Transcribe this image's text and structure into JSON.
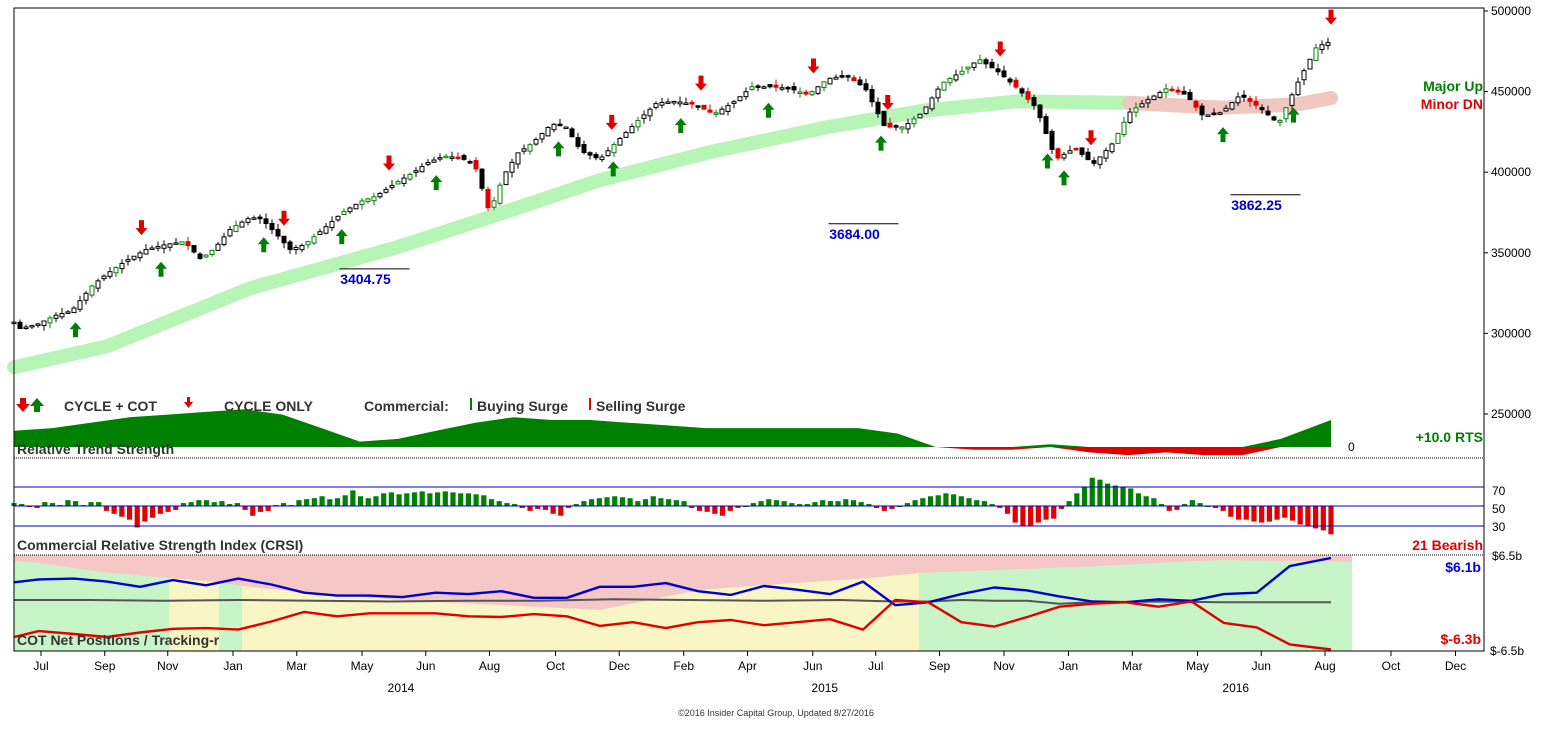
{
  "colors": {
    "bull": "#008000",
    "bear": "#e00000",
    "blue": "#0000cc",
    "trend_band": "#b6f5b6",
    "trend_band_pink": "#f6c2c2",
    "trend_band_yellow": "#f5f2b0",
    "panel_green": "#c8f5c8",
    "panel_pink": "#f6c7c7",
    "panel_yellow": "#f8f6c4"
  },
  "chart_data": {
    "type": "candlestick",
    "price_panel": {
      "y_ticks": [
        "500000",
        "450000",
        "400000",
        "350000",
        "300000",
        "250000"
      ],
      "ylim": [
        214000,
        500000
      ],
      "trend_label_1": "Major Up",
      "trend_label_2": "Minor DN",
      "annotations": [
        {
          "text": "3404.75",
          "x": 47.4,
          "y": 340000
        },
        {
          "text": "3684.00",
          "x": 112.6,
          "y": 368000
        },
        {
          "text": "3862.25",
          "x": 166.2,
          "y": 386000
        }
      ],
      "key_points": [
        [
          0.0,
          307000
        ],
        [
          0.8,
          303000
        ],
        [
          3.3,
          306000
        ],
        [
          5.4,
          311000
        ],
        [
          7.7,
          314000
        ],
        [
          10.5,
          330000
        ],
        [
          12.4,
          337000
        ],
        [
          14.9,
          345000
        ],
        [
          17.6,
          352000
        ],
        [
          20.1,
          355000
        ],
        [
          22.7,
          357000
        ],
        [
          24.9,
          346000
        ],
        [
          26.8,
          353000
        ],
        [
          28.9,
          365000
        ],
        [
          31.5,
          372000
        ],
        [
          33.0,
          371000
        ],
        [
          34.9,
          362000
        ],
        [
          36.8,
          352000
        ],
        [
          38.7,
          355000
        ],
        [
          41.3,
          365000
        ],
        [
          43.8,
          375000
        ],
        [
          46.3,
          382000
        ],
        [
          48.2,
          385000
        ],
        [
          50.8,
          393000
        ],
        [
          53.3,
          400000
        ],
        [
          55.2,
          406000
        ],
        [
          57.3,
          410000
        ],
        [
          59.5,
          409000
        ],
        [
          61.4,
          405000
        ],
        [
          63.4,
          375000
        ],
        [
          65.3,
          398000
        ],
        [
          67.2,
          412000
        ],
        [
          69.1,
          418000
        ],
        [
          71.7,
          430000
        ],
        [
          73.6,
          428000
        ],
        [
          75.6,
          413000
        ],
        [
          78.1,
          408000
        ],
        [
          80.6,
          420000
        ],
        [
          83.2,
          432000
        ],
        [
          85.7,
          443000
        ],
        [
          88.2,
          444000
        ],
        [
          90.8,
          442000
        ],
        [
          93.3,
          436000
        ],
        [
          95.8,
          443000
        ],
        [
          98.4,
          453000
        ],
        [
          100.9,
          453000
        ],
        [
          103.4,
          452000
        ],
        [
          105.9,
          448000
        ],
        [
          108.5,
          458000
        ],
        [
          111.0,
          460000
        ],
        [
          113.5,
          452000
        ],
        [
          116.1,
          428000
        ],
        [
          118.6,
          428000
        ],
        [
          121.1,
          437000
        ],
        [
          123.7,
          455000
        ],
        [
          126.2,
          462000
        ],
        [
          128.7,
          470000
        ],
        [
          131.3,
          462000
        ],
        [
          133.8,
          452000
        ],
        [
          136.3,
          440000
        ],
        [
          138.9,
          408000
        ],
        [
          141.4,
          415000
        ],
        [
          143.9,
          405000
        ],
        [
          146.5,
          418000
        ],
        [
          148.7,
          437000
        ],
        [
          151.2,
          445000
        ],
        [
          153.7,
          452000
        ],
        [
          156.3,
          448000
        ],
        [
          158.5,
          435000
        ],
        [
          161.0,
          437000
        ],
        [
          163.5,
          448000
        ],
        [
          166.1,
          440000
        ],
        [
          168.6,
          430000
        ],
        [
          171.1,
          455000
        ],
        [
          173.7,
          478000
        ],
        [
          175.6,
          481000
        ]
      ],
      "major_trend": [
        [
          0.0,
          279000
        ],
        [
          12.4,
          292000
        ],
        [
          31.5,
          328000
        ],
        [
          50.8,
          353000
        ],
        [
          63.4,
          372000
        ],
        [
          78.1,
          395000
        ],
        [
          93.3,
          413000
        ],
        [
          108.5,
          428000
        ],
        [
          121.1,
          438000
        ],
        [
          133.8,
          444000
        ],
        [
          148.7,
          443000
        ],
        [
          161.0,
          440000
        ],
        [
          171.1,
          442000
        ],
        [
          175.6,
          446000
        ]
      ],
      "buy_signals": [
        8.2,
        19.6,
        33.3,
        43.7,
        56.3,
        72.6,
        79.9,
        88.9,
        100.6,
        115.6,
        137.8,
        140.0,
        161.2,
        170.6
      ],
      "sell_signals": [
        17.0,
        36.0,
        50.0,
        79.7,
        91.6,
        106.6,
        116.5,
        131.5,
        143.6,
        175.6
      ]
    },
    "rts_panel": {
      "title": "Relative Trend Strength",
      "value_label": "+10.0 RTS",
      "zero_label": "0",
      "series": [
        [
          0.0,
          6
        ],
        [
          5.1,
          7
        ],
        [
          10.2,
          9
        ],
        [
          15.4,
          11
        ],
        [
          20.5,
          12
        ],
        [
          25.6,
          13
        ],
        [
          30.7,
          14
        ],
        [
          35.8,
          12
        ],
        [
          41.0,
          7
        ],
        [
          46.1,
          2
        ],
        [
          51.2,
          3
        ],
        [
          56.3,
          6
        ],
        [
          61.5,
          9
        ],
        [
          66.6,
          11
        ],
        [
          71.7,
          10
        ],
        [
          76.8,
          10
        ],
        [
          81.9,
          9
        ],
        [
          87.1,
          8
        ],
        [
          92.2,
          7
        ],
        [
          97.3,
          7
        ],
        [
          102.4,
          7
        ],
        [
          107.5,
          7
        ],
        [
          112.6,
          7
        ],
        [
          117.8,
          5
        ],
        [
          122.9,
          0
        ],
        [
          128.0,
          -1
        ],
        [
          133.1,
          -1
        ],
        [
          138.2,
          1
        ],
        [
          143.4,
          -2
        ],
        [
          148.5,
          -3
        ],
        [
          153.6,
          -2
        ],
        [
          158.7,
          -3
        ],
        [
          163.8,
          -3
        ],
        [
          168.9,
          3
        ],
        [
          175.6,
          10
        ]
      ]
    },
    "crsi_panel": {
      "title": "Commercial Relative Strength Index (CRSI)",
      "value_label": "21 Bearish",
      "y_ticks": [
        "70",
        "50",
        "30"
      ],
      "values": [
        53,
        52,
        49,
        48,
        54,
        53,
        51,
        56,
        55,
        51,
        54,
        54,
        45,
        42,
        39,
        36,
        28,
        34,
        38,
        42,
        44,
        46,
        53,
        54,
        56,
        56,
        54,
        55,
        52,
        53,
        46,
        40,
        44,
        45,
        51,
        53,
        51,
        56,
        57,
        58,
        60,
        57,
        58,
        61,
        66,
        60,
        58,
        60,
        63,
        64,
        62,
        63,
        64,
        65,
        63,
        64,
        65,
        64,
        63,
        63,
        62,
        61,
        57,
        55,
        53,
        52,
        48,
        45,
        47,
        46,
        42,
        40,
        48,
        52,
        55,
        57,
        58,
        59,
        60,
        59,
        58,
        55,
        57,
        60,
        58,
        57,
        56,
        55,
        48,
        45,
        44,
        42,
        40,
        45,
        48,
        50,
        53,
        55,
        57,
        56,
        55,
        53,
        52,
        52,
        54,
        56,
        55,
        55,
        57,
        56,
        54,
        52,
        48,
        45,
        47,
        50,
        53,
        56,
        58,
        60,
        61,
        63,
        62,
        60,
        58,
        56,
        55,
        52,
        48,
        42,
        33,
        29,
        30,
        33,
        36,
        37,
        47,
        55,
        63,
        69,
        79,
        77,
        73,
        71,
        69,
        68,
        63,
        60,
        58,
        52,
        45,
        46,
        52,
        56,
        53,
        50,
        48,
        45,
        39,
        36,
        36,
        34,
        33,
        34,
        36,
        38,
        35,
        31,
        29,
        27,
        25,
        21
      ]
    },
    "cot_panel": {
      "title": "COT Net Positions / Tracking-r",
      "top_label": "$6.5b",
      "bottom_label": "$-6.5b",
      "blue_label": "$6.1b",
      "red_label": "$-6.3b",
      "ylim": [
        -6.5,
        6.5
      ],
      "blue": [
        [
          0.0,
          2.8
        ],
        [
          3.3,
          3.2
        ],
        [
          8.0,
          3.3
        ],
        [
          12.4,
          2.9
        ],
        [
          16.8,
          2.2
        ],
        [
          21.2,
          3.1
        ],
        [
          25.6,
          2.4
        ],
        [
          29.9,
          3.3
        ],
        [
          34.3,
          2.5
        ],
        [
          38.7,
          1.4
        ],
        [
          43.1,
          1.0
        ],
        [
          47.4,
          1.0
        ],
        [
          51.8,
          0.8
        ],
        [
          56.2,
          1.4
        ],
        [
          60.6,
          1.2
        ],
        [
          65.0,
          1.6
        ],
        [
          69.3,
          0.7
        ],
        [
          73.7,
          0.7
        ],
        [
          78.1,
          2.2
        ],
        [
          82.5,
          2.2
        ],
        [
          86.9,
          2.7
        ],
        [
          91.2,
          1.6
        ],
        [
          95.6,
          1.1
        ],
        [
          100.0,
          2.3
        ],
        [
          104.4,
          1.8
        ],
        [
          108.8,
          1.2
        ],
        [
          113.2,
          2.9
        ],
        [
          117.5,
          -0.3
        ],
        [
          121.9,
          0.1
        ],
        [
          126.3,
          1.2
        ],
        [
          130.7,
          2.1
        ],
        [
          135.1,
          1.7
        ],
        [
          139.4,
          0.9
        ],
        [
          143.8,
          0.2
        ],
        [
          148.2,
          0.1
        ],
        [
          152.6,
          0.5
        ],
        [
          157.0,
          0.3
        ],
        [
          161.3,
          1.2
        ],
        [
          165.7,
          1.4
        ],
        [
          170.1,
          5.0
        ],
        [
          175.6,
          6.1
        ]
      ],
      "gray": [
        [
          0.0,
          0.4
        ],
        [
          10.0,
          0.4
        ],
        [
          20.0,
          0.3
        ],
        [
          30.0,
          0.4
        ],
        [
          40.0,
          0.3
        ],
        [
          50.0,
          0.2
        ],
        [
          60.0,
          0.3
        ],
        [
          70.0,
          0.3
        ],
        [
          80.0,
          0.5
        ],
        [
          90.0,
          0.4
        ],
        [
          100.0,
          0.3
        ],
        [
          110.0,
          0.4
        ],
        [
          117.5,
          0.2
        ],
        [
          121.9,
          0.2
        ],
        [
          126.3,
          0.4
        ],
        [
          130.7,
          0.3
        ],
        [
          135.1,
          0.3
        ],
        [
          139.4,
          -0.1
        ],
        [
          143.8,
          0.1
        ],
        [
          152.6,
          0.2
        ],
        [
          161.3,
          0.1
        ],
        [
          170.1,
          0.1
        ],
        [
          175.6,
          0.1
        ]
      ],
      "red": [
        [
          0.0,
          -4.6
        ],
        [
          3.3,
          -3.8
        ],
        [
          8.0,
          -4.2
        ],
        [
          12.4,
          -4.6
        ],
        [
          16.8,
          -4.0
        ],
        [
          21.2,
          -3.5
        ],
        [
          25.6,
          -3.4
        ],
        [
          29.9,
          -3.6
        ],
        [
          34.3,
          -2.5
        ],
        [
          38.7,
          -1.2
        ],
        [
          43.1,
          -1.8
        ],
        [
          47.4,
          -1.4
        ],
        [
          51.8,
          -1.4
        ],
        [
          56.2,
          -1.4
        ],
        [
          60.6,
          -1.8
        ],
        [
          65.0,
          -1.9
        ],
        [
          69.3,
          -1.5
        ],
        [
          73.7,
          -1.8
        ],
        [
          78.1,
          -3.1
        ],
        [
          82.5,
          -2.6
        ],
        [
          86.9,
          -3.4
        ],
        [
          91.2,
          -2.6
        ],
        [
          95.6,
          -2.3
        ],
        [
          100.0,
          -3.0
        ],
        [
          104.4,
          -2.6
        ],
        [
          108.8,
          -2.2
        ],
        [
          113.2,
          -3.6
        ],
        [
          117.5,
          0.4
        ],
        [
          121.9,
          0.1
        ],
        [
          126.3,
          -2.6
        ],
        [
          130.7,
          -3.2
        ],
        [
          135.1,
          -1.9
        ],
        [
          139.4,
          -0.5
        ],
        [
          143.8,
          -0.1
        ],
        [
          148.2,
          0.1
        ],
        [
          152.6,
          -0.5
        ],
        [
          157.0,
          0.2
        ],
        [
          161.3,
          -2.7
        ],
        [
          165.7,
          -3.3
        ],
        [
          170.1,
          -5.6
        ],
        [
          175.6,
          -6.3
        ]
      ]
    },
    "x_axis": {
      "labels": [
        "Jul",
        "Sep",
        "Nov",
        "Jan",
        "Mar",
        "May",
        "Jun",
        "Aug",
        "Oct",
        "Dec",
        "Feb",
        "Apr",
        "Jun",
        "Jul",
        "Sep",
        "Nov",
        "Jan",
        "Mar",
        "May",
        "Jun",
        "Aug",
        "Oct",
        "Dec"
      ],
      "label_positions": [
        3.6,
        12.1,
        20.5,
        29.2,
        37.7,
        46.4,
        54.9,
        63.4,
        72.2,
        80.7,
        89.3,
        97.8,
        106.5,
        114.9,
        123.4,
        132.0,
        140.6,
        149.1,
        157.8,
        166.3,
        174.8,
        183.6,
        192.2
      ],
      "years": [
        {
          "text": "2014",
          "position": 51.6
        },
        {
          "text": "2015",
          "position": 108.1
        },
        {
          "text": "2016",
          "position": 162.9
        }
      ],
      "domain": [
        0,
        196
      ]
    },
    "legend": {
      "cycle_cot": "CYCLE + COT",
      "cycle_only": "CYCLE ONLY",
      "commercial": "Commercial:",
      "buying": "Buying Surge",
      "selling": "Selling Surge"
    },
    "footer": "©2016 Insider Capital Group, Updated 8/27/2016"
  }
}
